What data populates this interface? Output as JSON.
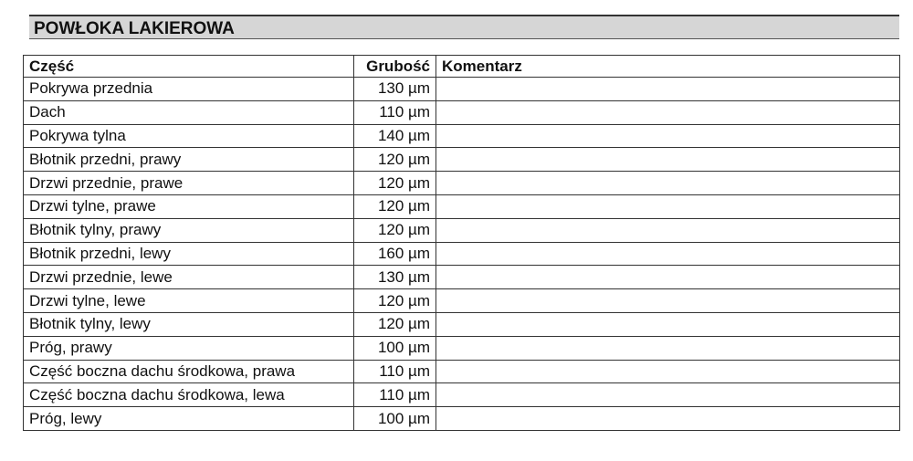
{
  "title": "POWŁOKA LAKIEROWA",
  "headers": {
    "part": "Część",
    "thickness": "Grubość",
    "comment": "Komentarz"
  },
  "rows": [
    {
      "part": "Pokrywa przednia",
      "thickness": "130 µm",
      "comment": ""
    },
    {
      "part": "Dach",
      "thickness": "110 µm",
      "comment": ""
    },
    {
      "part": "Pokrywa tylna",
      "thickness": "140 µm",
      "comment": ""
    },
    {
      "part": "Błotnik przedni, prawy",
      "thickness": "120 µm",
      "comment": ""
    },
    {
      "part": "Drzwi przednie, prawe",
      "thickness": "120 µm",
      "comment": ""
    },
    {
      "part": "Drzwi tylne, prawe",
      "thickness": "120 µm",
      "comment": ""
    },
    {
      "part": "Błotnik tylny, prawy",
      "thickness": "120 µm",
      "comment": ""
    },
    {
      "part": "Błotnik przedni, lewy",
      "thickness": "160 µm",
      "comment": ""
    },
    {
      "part": "Drzwi przednie, lewe",
      "thickness": "130 µm",
      "comment": ""
    },
    {
      "part": "Drzwi tylne, lewe",
      "thickness": "120 µm",
      "comment": ""
    },
    {
      "part": "Błotnik tylny, lewy",
      "thickness": "120 µm",
      "comment": ""
    },
    {
      "part": "Próg, prawy",
      "thickness": "100 µm",
      "comment": ""
    },
    {
      "part": "Część boczna dachu środkowa, prawa",
      "thickness": "110 µm",
      "comment": ""
    },
    {
      "part": "Część boczna dachu środkowa, lewa",
      "thickness": "110 µm",
      "comment": ""
    },
    {
      "part": "Próg, lewy",
      "thickness": "100 µm",
      "comment": ""
    }
  ]
}
